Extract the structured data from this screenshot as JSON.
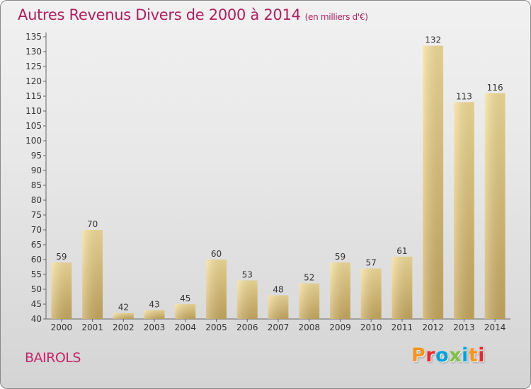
{
  "chart_data": {
    "type": "bar",
    "title": "Autres Revenus Divers de 2000 à 2014",
    "subtitle": "(en milliers d'€)",
    "categories": [
      "2000",
      "2001",
      "2002",
      "2003",
      "2004",
      "2005",
      "2006",
      "2007",
      "2008",
      "2009",
      "2010",
      "2011",
      "2012",
      "2013",
      "2014"
    ],
    "values": [
      59,
      70,
      42,
      43,
      45,
      60,
      53,
      48,
      52,
      59,
      57,
      61,
      132,
      113,
      116
    ],
    "xlabel": "",
    "ylabel": "",
    "ylim": [
      40,
      135
    ],
    "ytick_step": 5,
    "grid": false,
    "legend": "none",
    "data_labels": true,
    "bar_color": "#e9cf86"
  },
  "footer": {
    "place": "BAIROLS",
    "logo": "Proxiti"
  },
  "colors": {
    "title": "#b0205f",
    "place": "#c5286a",
    "logo_letters": [
      "#f7941d",
      "#e8282e",
      "#00a3d9",
      "#7dc242",
      "#00a3d9",
      "#f7941d",
      "#e8282e"
    ]
  }
}
